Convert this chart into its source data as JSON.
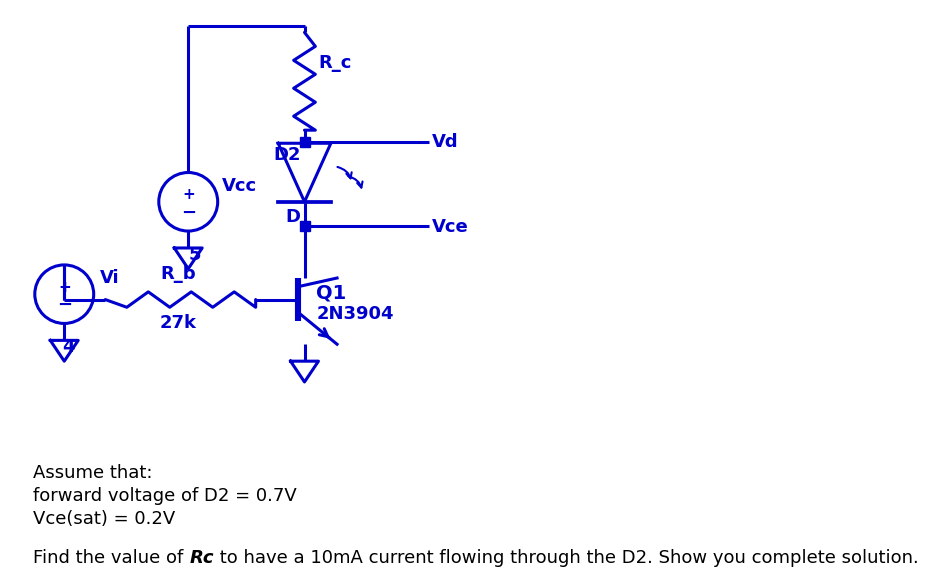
{
  "color": "#0000CD",
  "bg_color": "#FFFFFF",
  "text_color": "#000000",
  "vcc_label": "Vcc",
  "vcc_value": "5",
  "vi_label": "Vi",
  "vi_value": "4",
  "rb_label": "R_b",
  "rb_value": "27k",
  "rc_label": "R_c",
  "q1_label": "Q1",
  "q1_model": "2N3904",
  "d2_label": "D2",
  "d_label": "D",
  "vd_label": "Vd",
  "vce_label": "Vce",
  "bottom_text1": "Assume that:",
  "bottom_text2": "forward voltage of D2 = 0.7V",
  "bottom_text3": "Vce(sat) = 0.2V",
  "find_prefix": "Find the value of ",
  "find_bold": "Rc",
  "find_suffix": " to have a 10mA current flowing through the D2. Show you complete solution."
}
